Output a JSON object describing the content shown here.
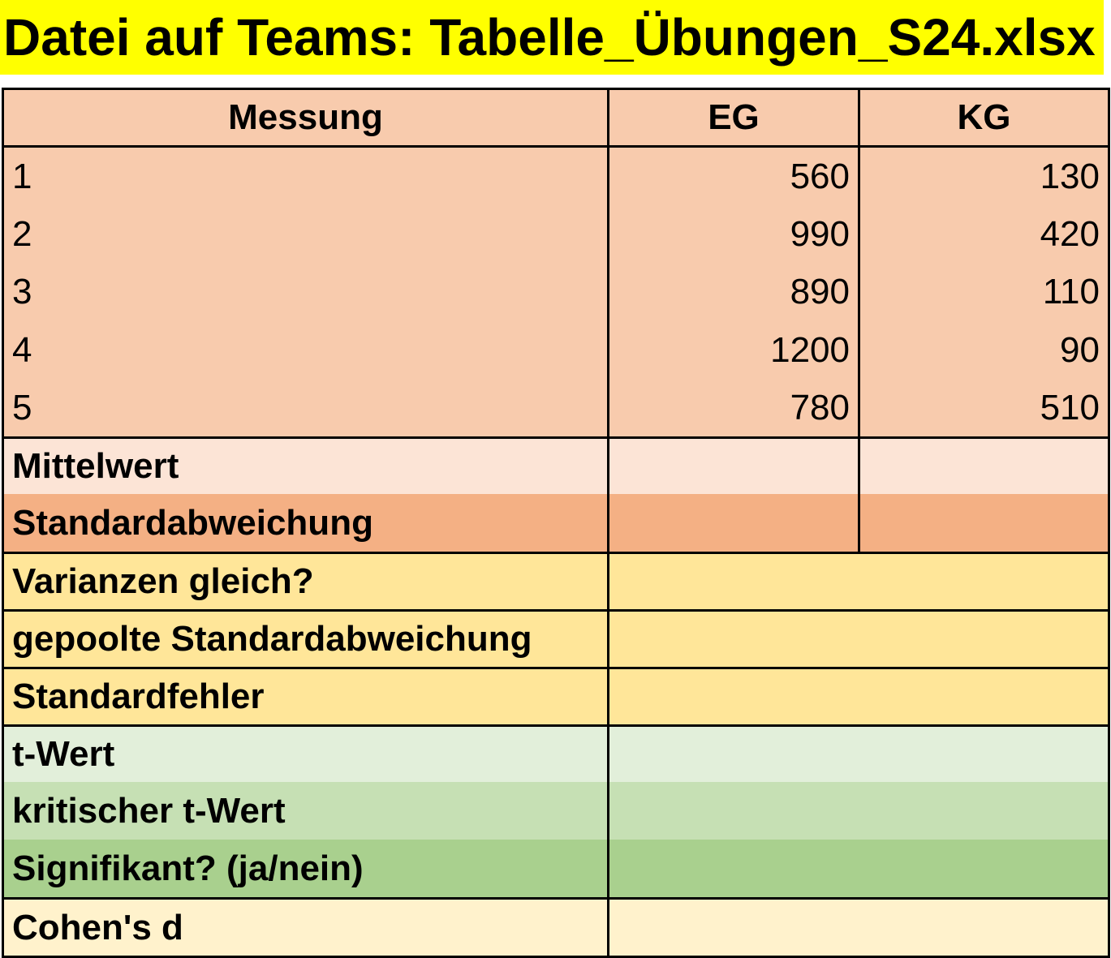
{
  "title": "Datei auf Teams: Tabelle_Übungen_S24.xlsx",
  "table": {
    "headers": [
      "Messung",
      "EG",
      "KG"
    ],
    "measurements": [
      "1",
      "2",
      "3",
      "4",
      "5"
    ],
    "eg_values": [
      "560",
      "990",
      "890",
      "1200",
      "780"
    ],
    "kg_values": [
      "130",
      "420",
      "110",
      "90",
      "510"
    ],
    "rows": {
      "mean": "Mittelwert",
      "std": "Standardabweichung",
      "variances_equal": "Varianzen gleich?",
      "pooled_std": "gepoolte Standardabweichung",
      "std_error": "Standardfehler",
      "t_value": "t-Wert",
      "critical_t": "kritischer t-Wert",
      "significant": "Signifikant? (ja/nein)",
      "cohens_d": "Cohen's d"
    }
  },
  "colors": {
    "title_bg": "#ffff00",
    "data_bg": "#f8cbad",
    "mean_bg": "#fce4d6",
    "std_bg": "#f4b084",
    "variance_bg": "#ffe699",
    "t_value_bg": "#e2efda",
    "critical_bg": "#c6e0b4",
    "significant_bg": "#a9d08e",
    "cohens_bg": "#fff2cc"
  }
}
